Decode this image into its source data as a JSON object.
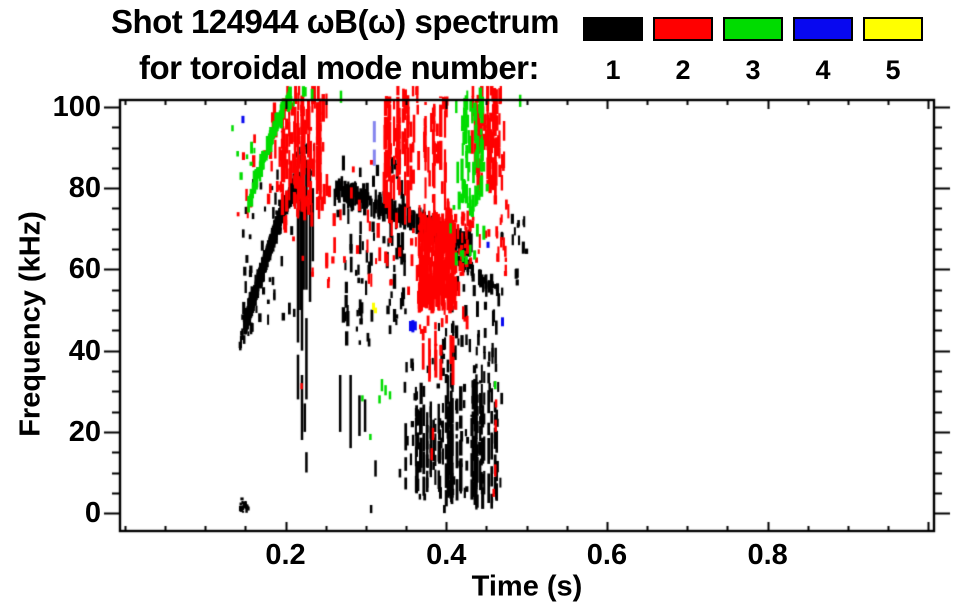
{
  "chart_data": {
    "type": "scatter",
    "title": "Shot 124944 ωB(ω) spectrum",
    "subtitle": "for toroidal mode number:",
    "xlabel": "Time (s)",
    "ylabel": "Frequency (kHz)",
    "background": "#ffffff",
    "axis_color": "#000000",
    "grid": false,
    "legend_position": "top-right",
    "legend": [
      {
        "label": "1",
        "color": "#000000"
      },
      {
        "label": "2",
        "color": "#ff0000"
      },
      {
        "label": "3",
        "color": "#00dc00"
      },
      {
        "label": "4",
        "color": "#0808f0"
      },
      {
        "label": "5",
        "color": "#ffff00"
      }
    ],
    "modes": {
      "1": "#000000",
      "2": "#ff0000",
      "3": "#00dc00",
      "4": "#0808f0",
      "5": "#ffff00"
    },
    "xaxis": {
      "range": [
        -0.006,
        1.007
      ],
      "major_ticks": [
        0.2,
        0.4,
        0.6,
        0.8,
        1.0
      ],
      "labeled_values": [
        0.2,
        0.4,
        0.6,
        0.8
      ],
      "labels": [
        "0.2",
        "0.4",
        "0.6",
        "0.8"
      ],
      "minor_step": 0.05
    },
    "yaxis": {
      "range": [
        -4.4,
        101.7
      ],
      "major_ticks": [
        0,
        20,
        40,
        60,
        80,
        100
      ],
      "labeled_values": [
        0,
        20,
        40,
        60,
        80,
        100
      ],
      "labels": [
        "0",
        "20",
        "40",
        "60",
        "80",
        "100"
      ],
      "minor_step": 5
    },
    "features": [
      {
        "name": "n1-chirp",
        "mode": "1",
        "kind": "band",
        "path": [
          [
            0.149,
            46
          ],
          [
            0.158,
            52
          ],
          [
            0.168,
            58
          ],
          [
            0.178,
            64
          ],
          [
            0.188,
            70
          ],
          [
            0.198,
            75
          ],
          [
            0.208,
            79
          ],
          [
            0.216,
            81
          ]
        ],
        "spread": 2.2,
        "dash": [
          1.5,
          5
        ],
        "count": 260,
        "seed": 11
      },
      {
        "name": "n1-chirp-halo",
        "mode": "1",
        "kind": "region",
        "t": [
          0.145,
          0.225
        ],
        "f": [
          44,
          84
        ],
        "count": 45,
        "dash": [
          1,
          3
        ],
        "seed": 12
      },
      {
        "name": "n1-chirp-tail",
        "mode": "1",
        "kind": "region",
        "t": [
          0.143,
          0.162
        ],
        "f": [
          40,
          50
        ],
        "count": 15,
        "dash": [
          1,
          3
        ],
        "seed": 13
      },
      {
        "name": "n1-hook-top",
        "mode": "1",
        "kind": "region",
        "t": [
          0.213,
          0.237
        ],
        "f": [
          83,
          90
        ],
        "count": 14,
        "dash": [
          1,
          3
        ],
        "seed": 14
      },
      {
        "name": "n1-tall-lines",
        "mode": "1",
        "kind": "segments",
        "w": 2.5,
        "segments": [
          [
            0.2155,
            42,
            88
          ],
          [
            0.2155,
            28,
            39
          ],
          [
            0.2185,
            50,
            83
          ],
          [
            0.2205,
            40,
            89
          ],
          [
            0.2205,
            18,
            34
          ],
          [
            0.2225,
            55,
            80
          ],
          [
            0.226,
            55,
            87
          ],
          [
            0.226,
            28,
            48
          ],
          [
            0.226,
            10,
            15
          ],
          [
            0.2305,
            52,
            88
          ],
          [
            0.234,
            62,
            80
          ],
          [
            0.224,
            20,
            27
          ]
        ],
        "seed": 15
      },
      {
        "name": "n1-desc-band",
        "mode": "1",
        "kind": "band",
        "path": [
          [
            0.262,
            80
          ],
          [
            0.3,
            77
          ],
          [
            0.34,
            73.5
          ],
          [
            0.37,
            71
          ],
          [
            0.4,
            68.5
          ],
          [
            0.432,
            66.3
          ]
        ],
        "spread": 1.8,
        "dash": [
          1.5,
          6
        ],
        "count": 150,
        "seed": 16
      },
      {
        "name": "n1-desc-tail",
        "mode": "1",
        "kind": "band",
        "path": [
          [
            0.408,
            63.5
          ],
          [
            0.44,
            59
          ],
          [
            0.468,
            53.5
          ]
        ],
        "spread": 2.5,
        "dash": [
          1,
          4
        ],
        "count": 40,
        "seed": 17
      },
      {
        "name": "n1-upper-scatter",
        "mode": "1",
        "kind": "region",
        "t": [
          0.26,
          0.35
        ],
        "f": [
          58,
          86
        ],
        "count": 48,
        "dash": [
          1.5,
          5
        ],
        "seed": 18
      },
      {
        "name": "n1-mid-speckle",
        "mode": "1",
        "kind": "region",
        "t": [
          0.272,
          0.308
        ],
        "f": [
          41,
          60
        ],
        "count": 26,
        "dash": [
          1,
          4
        ],
        "seed": 19
      },
      {
        "name": "n1-mid-speckle2",
        "mode": "1",
        "kind": "region",
        "t": [
          0.325,
          0.35
        ],
        "f": [
          44,
          60
        ],
        "count": 14,
        "dash": [
          1,
          4
        ],
        "seed": 20
      },
      {
        "name": "n1-mid-columns",
        "mode": "1",
        "kind": "segments",
        "w": 2.5,
        "segments": [
          [
            0.268,
            20,
            34
          ],
          [
            0.281,
            16,
            34
          ],
          [
            0.292,
            19,
            29
          ],
          [
            0.299,
            20,
            28
          ],
          [
            0.3065,
            0,
            2
          ],
          [
            0.312,
            9,
            13
          ]
        ],
        "seed": 21
      },
      {
        "name": "n1-bottom-cols-left",
        "mode": "1",
        "kind": "columns",
        "t": [
          0.344,
          0.396
        ],
        "n": 16,
        "ftop": [
          22,
          34
        ],
        "fbot": [
          4,
          14
        ],
        "seed": 22
      },
      {
        "name": "n1-bottom-cols-right",
        "mode": "1",
        "kind": "columns",
        "t": [
          0.396,
          0.467
        ],
        "n": 26,
        "ftop": [
          24,
          38
        ],
        "fbot": [
          0,
          6
        ],
        "seed": 23
      },
      {
        "name": "n1-bottom-speckle",
        "mode": "1",
        "kind": "region",
        "t": [
          0.34,
          0.47
        ],
        "f": [
          0,
          38
        ],
        "count": 60,
        "dash": [
          1,
          3
        ],
        "seed": 24
      },
      {
        "name": "n1-desc-to-bottom",
        "mode": "1",
        "kind": "region",
        "t": [
          0.39,
          0.465
        ],
        "f": [
          36,
          57
        ],
        "count": 42,
        "dash": [
          1,
          4
        ],
        "seed": 25
      },
      {
        "name": "n1-right-sparse",
        "mode": "1",
        "kind": "region",
        "t": [
          0.468,
          0.502
        ],
        "f": [
          52,
          74
        ],
        "count": 16,
        "dash": [
          1,
          3
        ],
        "seed": 26
      },
      {
        "name": "n1-bottom-left-smudge",
        "mode": "1",
        "kind": "region",
        "t": [
          0.141,
          0.156
        ],
        "f": [
          0,
          3.5
        ],
        "count": 16,
        "dash": [
          0.5,
          1.8
        ],
        "seed": 27
      },
      {
        "name": "n2-top-a-cols",
        "mode": "2",
        "kind": "columns",
        "t": [
          0.196,
          0.246
        ],
        "n": 24,
        "ftop": [
          92,
          103
        ],
        "fbot": [
          72,
          86
        ],
        "seed": 31
      },
      {
        "name": "n2-top-a",
        "mode": "2",
        "kind": "region",
        "t": [
          0.181,
          0.252
        ],
        "f": [
          78,
          103
        ],
        "count": 55,
        "dash": [
          2,
          7
        ],
        "seed": 32
      },
      {
        "name": "n2-top-a-below",
        "mode": "2",
        "kind": "region",
        "t": [
          0.196,
          0.262
        ],
        "f": [
          55,
          80
        ],
        "count": 26,
        "dash": [
          1,
          4
        ],
        "seed": 33
      },
      {
        "name": "n2-left-sparse",
        "mode": "2",
        "kind": "region",
        "t": [
          0.14,
          0.196
        ],
        "f": [
          70,
          92
        ],
        "count": 13,
        "dash": [
          1,
          3
        ],
        "seed": 34
      },
      {
        "name": "n2-mid-sparse",
        "mode": "2",
        "kind": "region",
        "t": [
          0.26,
          0.335
        ],
        "f": [
          55,
          86
        ],
        "count": 26,
        "dash": [
          1,
          4
        ],
        "seed": 35
      },
      {
        "name": "n2-top-b-cols",
        "mode": "2",
        "kind": "columns",
        "t": [
          0.322,
          0.402
        ],
        "n": 20,
        "ftop": [
          95,
          103
        ],
        "fbot": [
          70,
          88
        ],
        "seed": 36
      },
      {
        "name": "n2-top-b",
        "mode": "2",
        "kind": "region",
        "t": [
          0.322,
          0.402
        ],
        "f": [
          75,
          103
        ],
        "count": 45,
        "dash": [
          2,
          7
        ],
        "seed": 37
      },
      {
        "name": "n2-top-b-below",
        "mode": "2",
        "kind": "region",
        "t": [
          0.33,
          0.405
        ],
        "f": [
          60,
          75
        ],
        "count": 18,
        "dash": [
          1,
          4
        ],
        "seed": 38
      },
      {
        "name": "n2-blob",
        "mode": "2",
        "kind": "region",
        "t": [
          0.366,
          0.412
        ],
        "f": [
          49,
          70
        ],
        "count": 280,
        "dash": [
          2,
          6
        ],
        "seed": 39
      },
      {
        "name": "n2-blob-halo",
        "mode": "2",
        "kind": "region",
        "t": [
          0.352,
          0.427
        ],
        "f": [
          44,
          74
        ],
        "count": 55,
        "dash": [
          1,
          4
        ],
        "seed": 40
      },
      {
        "name": "n2-blob-down-cols",
        "mode": "2",
        "kind": "columns",
        "t": [
          0.37,
          0.412
        ],
        "n": 8,
        "ftop": [
          40,
          48
        ],
        "fbot": [
          31,
          40
        ],
        "seed": 41
      },
      {
        "name": "n2-right-c-cols",
        "mode": "2",
        "kind": "columns",
        "t": [
          0.436,
          0.468
        ],
        "n": 14,
        "ftop": [
          95,
          103
        ],
        "fbot": [
          76,
          88
        ],
        "seed": 42
      },
      {
        "name": "n2-right-c",
        "mode": "2",
        "kind": "region",
        "t": [
          0.43,
          0.472
        ],
        "f": [
          78,
          103
        ],
        "count": 45,
        "dash": [
          2,
          6
        ],
        "seed": 43
      },
      {
        "name": "n2-right-c-below",
        "mode": "2",
        "kind": "region",
        "t": [
          0.452,
          0.478
        ],
        "f": [
          55,
          76
        ],
        "count": 16,
        "dash": [
          1,
          4
        ],
        "seed": 44
      },
      {
        "name": "n2-desc-mix",
        "mode": "2",
        "kind": "region",
        "t": [
          0.4,
          0.452
        ],
        "f": [
          58,
          73
        ],
        "count": 26,
        "dash": [
          1,
          4
        ],
        "seed": 45
      },
      {
        "name": "n2-flecks",
        "mode": "2",
        "kind": "segments",
        "w": 2.5,
        "segments": [
          [
            0.22,
            30.5,
            32
          ],
          [
            0.382,
            13,
            16
          ],
          [
            0.3835,
            18,
            21
          ],
          [
            0.461,
            9,
            12
          ],
          [
            0.4615,
            20,
            23
          ],
          [
            0.462,
            26,
            28
          ],
          [
            0.459,
            4,
            6
          ]
        ],
        "seed": 46
      },
      {
        "name": "n3-diag",
        "mode": "3",
        "kind": "band",
        "path": [
          [
            0.153,
            76
          ],
          [
            0.168,
            85
          ],
          [
            0.183,
            93
          ],
          [
            0.198,
            100
          ],
          [
            0.207,
            102.5
          ]
        ],
        "spread": 1.5,
        "dash": [
          2,
          6
        ],
        "count": 55,
        "seed": 51
      },
      {
        "name": "n3-left-flecks",
        "mode": "3",
        "kind": "region",
        "t": [
          0.14,
          0.162
        ],
        "f": [
          82,
          92
        ],
        "count": 6,
        "dash": [
          1,
          3
        ],
        "seed": 52
      },
      {
        "name": "n3-top-mix",
        "mode": "3",
        "kind": "region",
        "t": [
          0.2,
          0.245
        ],
        "f": [
          94,
          103
        ],
        "count": 8,
        "dash": [
          1,
          3
        ],
        "seed": 53
      },
      {
        "name": "n3-cluster-b",
        "mode": "3",
        "kind": "region",
        "t": [
          0.413,
          0.447
        ],
        "f": [
          72,
          100
        ],
        "count": 60,
        "dash": [
          2,
          6
        ],
        "seed": 54
      },
      {
        "name": "n3-cluster-b-halo",
        "mode": "3",
        "kind": "region",
        "t": [
          0.402,
          0.457
        ],
        "f": [
          60,
          100
        ],
        "count": 20,
        "dash": [
          1,
          4
        ],
        "seed": 55
      },
      {
        "name": "n3-flecks",
        "mode": "3",
        "kind": "segments",
        "w": 2.5,
        "segments": [
          [
            0.317,
            27,
            29
          ],
          [
            0.32,
            30,
            33
          ],
          [
            0.3245,
            29,
            31.5
          ],
          [
            0.33,
            28,
            30
          ],
          [
            0.2957,
            27.5,
            29
          ],
          [
            0.3056,
            18,
            19.5
          ],
          [
            0.461,
            30.5,
            32.5
          ],
          [
            0.492,
            100,
            103
          ],
          [
            0.269,
            101,
            104
          ],
          [
            0.134,
            94,
            95.5
          ]
        ],
        "seed": 56
      },
      {
        "name": "n4-light-streaks",
        "mode": "4",
        "kind": "segments",
        "color": "#8585ef",
        "w": 3,
        "segments": [
          [
            0.3105,
            91.3,
            96.5
          ],
          [
            0.3105,
            85.5,
            89.5
          ]
        ],
        "seed": 61
      },
      {
        "name": "n4-marks",
        "mode": "4",
        "kind": "segments",
        "w": 3,
        "segments": [
          [
            0.3555,
            44.8,
            47.3
          ],
          [
            0.3585,
            44.5,
            47.5
          ],
          [
            0.3615,
            45,
            47.2
          ],
          [
            0.452,
            65.3,
            66.8
          ],
          [
            0.47,
            46,
            48.2
          ],
          [
            0.147,
            96,
            97.8
          ]
        ],
        "seed": 62
      },
      {
        "name": "n5-marks",
        "mode": "5",
        "kind": "segments",
        "w": 3,
        "segments": [
          [
            0.3095,
            50,
            51.8
          ],
          [
            0.312,
            49.2,
            50.6
          ]
        ],
        "seed": 71
      }
    ]
  }
}
